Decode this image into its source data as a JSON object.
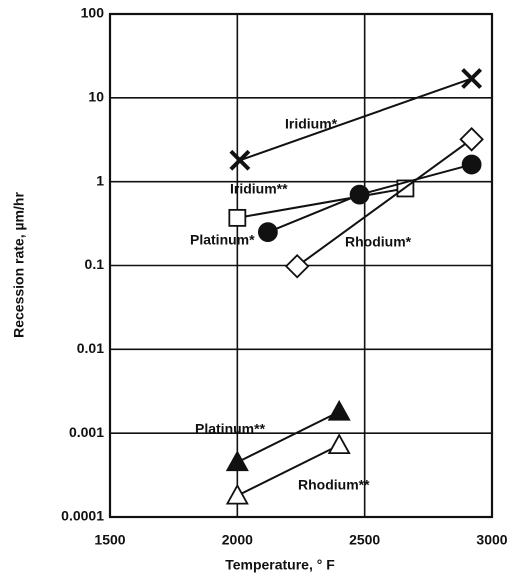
{
  "chart_data": {
    "type": "line",
    "xlabel": "Temperature, ° F",
    "ylabel": "Recession rate, µm/hr",
    "xlim": [
      1500,
      3000
    ],
    "xticks": [
      1500,
      2000,
      2500,
      3000
    ],
    "ylim": [
      0.0001,
      100
    ],
    "yticks": [
      100,
      10,
      1,
      0.1,
      0.01,
      0.001,
      0.0001
    ],
    "yscale": "log",
    "grid": true,
    "series": [
      {
        "name": "Iridium*",
        "color": "#111111",
        "marker": "x",
        "x": [
          2010,
          2920
        ],
        "values": [
          1.8,
          17
        ]
      },
      {
        "name": "Iridium**",
        "color": "#111111",
        "marker": "square-open",
        "x": [
          2000,
          2660
        ],
        "values": [
          0.37,
          0.83
        ]
      },
      {
        "name": "Platinum*",
        "color": "#111111",
        "marker": "circle-filled",
        "x": [
          2120,
          2480,
          2920
        ],
        "values": [
          0.25,
          0.7,
          1.6
        ]
      },
      {
        "name": "Rhodium*",
        "color": "#111111",
        "marker": "diamond-open",
        "x": [
          2235,
          2920
        ],
        "values": [
          0.098,
          3.2
        ]
      },
      {
        "name": "Platinum**",
        "color": "#111111",
        "marker": "triangle-filled",
        "x": [
          2000,
          2400
        ],
        "values": [
          0.00045,
          0.0018
        ]
      },
      {
        "name": "Rhodium**",
        "color": "#111111",
        "marker": "triangle-open",
        "x": [
          2000,
          2400
        ],
        "values": [
          0.00018,
          0.00072
        ]
      }
    ]
  }
}
